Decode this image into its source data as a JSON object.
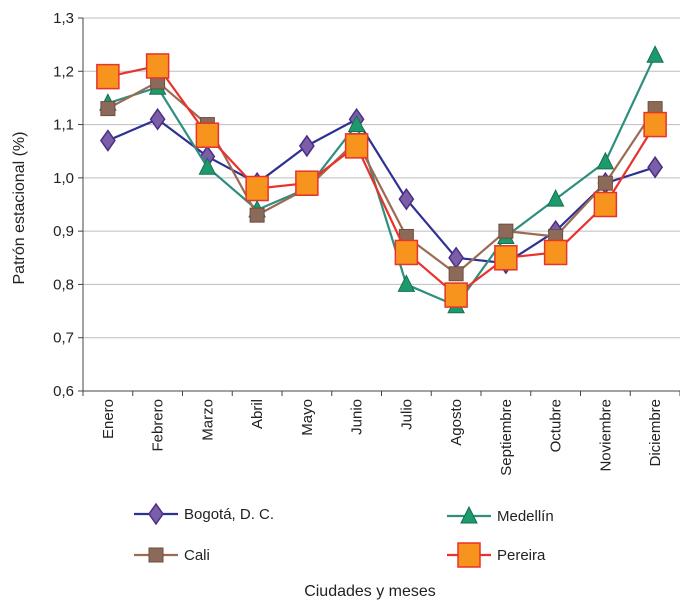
{
  "chart_data": {
    "type": "line",
    "title": "",
    "xlabel": "Ciudades y meses",
    "ylabel": "Patrón estacional (%)",
    "ylim": [
      0.6,
      1.3
    ],
    "yticks": [
      "0,6",
      "0,7",
      "0,8",
      "0,9",
      "1,0",
      "1,1",
      "1,2",
      "1,3"
    ],
    "ytick_values": [
      0.6,
      0.7,
      0.8,
      0.9,
      1.0,
      1.1,
      1.2,
      1.3
    ],
    "grid": true,
    "legend_position": "bottom",
    "categories": [
      "Enero",
      "Febrero",
      "Marzo",
      "Abril",
      "Mayo",
      "Junio",
      "Julio",
      "Agosto",
      "Septiembre",
      "Octubre",
      "Noviembre",
      "Diciembre"
    ],
    "series": [
      {
        "name": "Bogotá, D. C.",
        "color": "#2e3192",
        "marker_color": "#7b5ea8",
        "marker": "diamond",
        "values": [
          1.07,
          1.11,
          1.04,
          0.99,
          1.06,
          1.11,
          0.96,
          0.85,
          0.84,
          0.9,
          0.99,
          1.02
        ]
      },
      {
        "name": "Medellín",
        "color": "#2f8f7f",
        "marker_color": "#1d9a6c",
        "marker": "triangle",
        "values": [
          1.14,
          1.17,
          1.02,
          0.94,
          0.98,
          1.1,
          0.8,
          0.76,
          0.89,
          0.96,
          1.03,
          1.23
        ]
      },
      {
        "name": "Cali",
        "color": "#9c6b52",
        "marker_color": "#8c6a5a",
        "marker": "square",
        "values": [
          1.13,
          1.18,
          1.1,
          0.93,
          0.98,
          1.07,
          0.89,
          0.82,
          0.9,
          0.89,
          0.99,
          1.13
        ]
      },
      {
        "name": "Pereira",
        "color": "#e8322b",
        "marker_color": "#f7941d",
        "marker": "square-large",
        "values": [
          1.19,
          1.21,
          1.08,
          0.98,
          0.99,
          1.06,
          0.86,
          0.78,
          0.85,
          0.86,
          0.95,
          1.1
        ]
      }
    ]
  }
}
